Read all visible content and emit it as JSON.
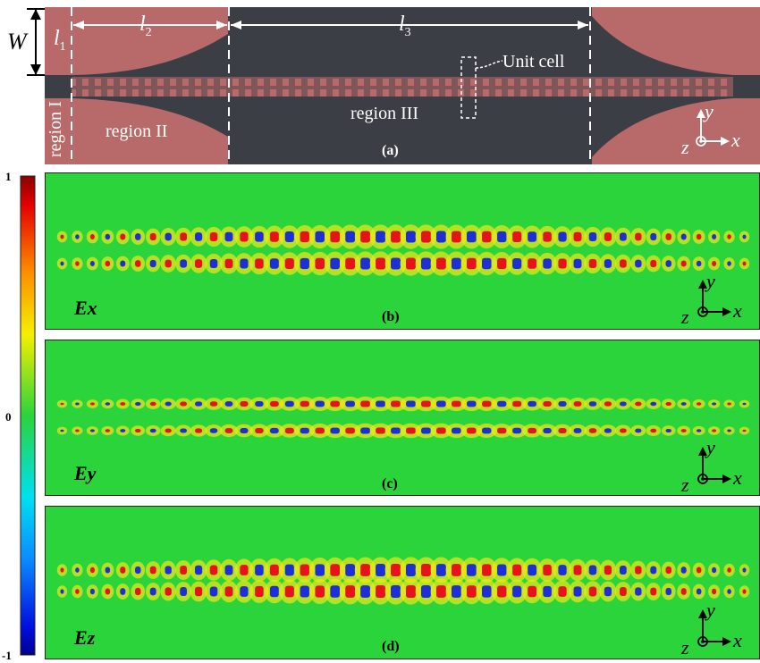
{
  "panel_a": {
    "tag": "(a)",
    "labels": {
      "W": "W",
      "l1": "l",
      "l1_sub": "1",
      "l2": "l",
      "l2_sub": "2",
      "l3": "l",
      "l3_sub": "3"
    },
    "regions": [
      "region I",
      "region II",
      "region III"
    ],
    "unit_cell": "Unit cell",
    "axes": {
      "x": "x",
      "y": "y",
      "z": "z"
    }
  },
  "colorbar": {
    "max": "1",
    "mid": "0",
    "min": "-1"
  },
  "panels": [
    {
      "id": "b",
      "tag": "(b)",
      "field": "Ex"
    },
    {
      "id": "c",
      "tag": "(c)",
      "field": "Ey"
    },
    {
      "id": "d",
      "tag": "(d)",
      "field": "Ez"
    }
  ],
  "axes": {
    "x": "x",
    "y": "y",
    "z": "z"
  },
  "colors": {
    "substrate": "#3c3e45",
    "metal": "#b86a6a",
    "background_field": "#2bd43a",
    "positive": "#e8121a",
    "negative": "#1f2fd6"
  }
}
